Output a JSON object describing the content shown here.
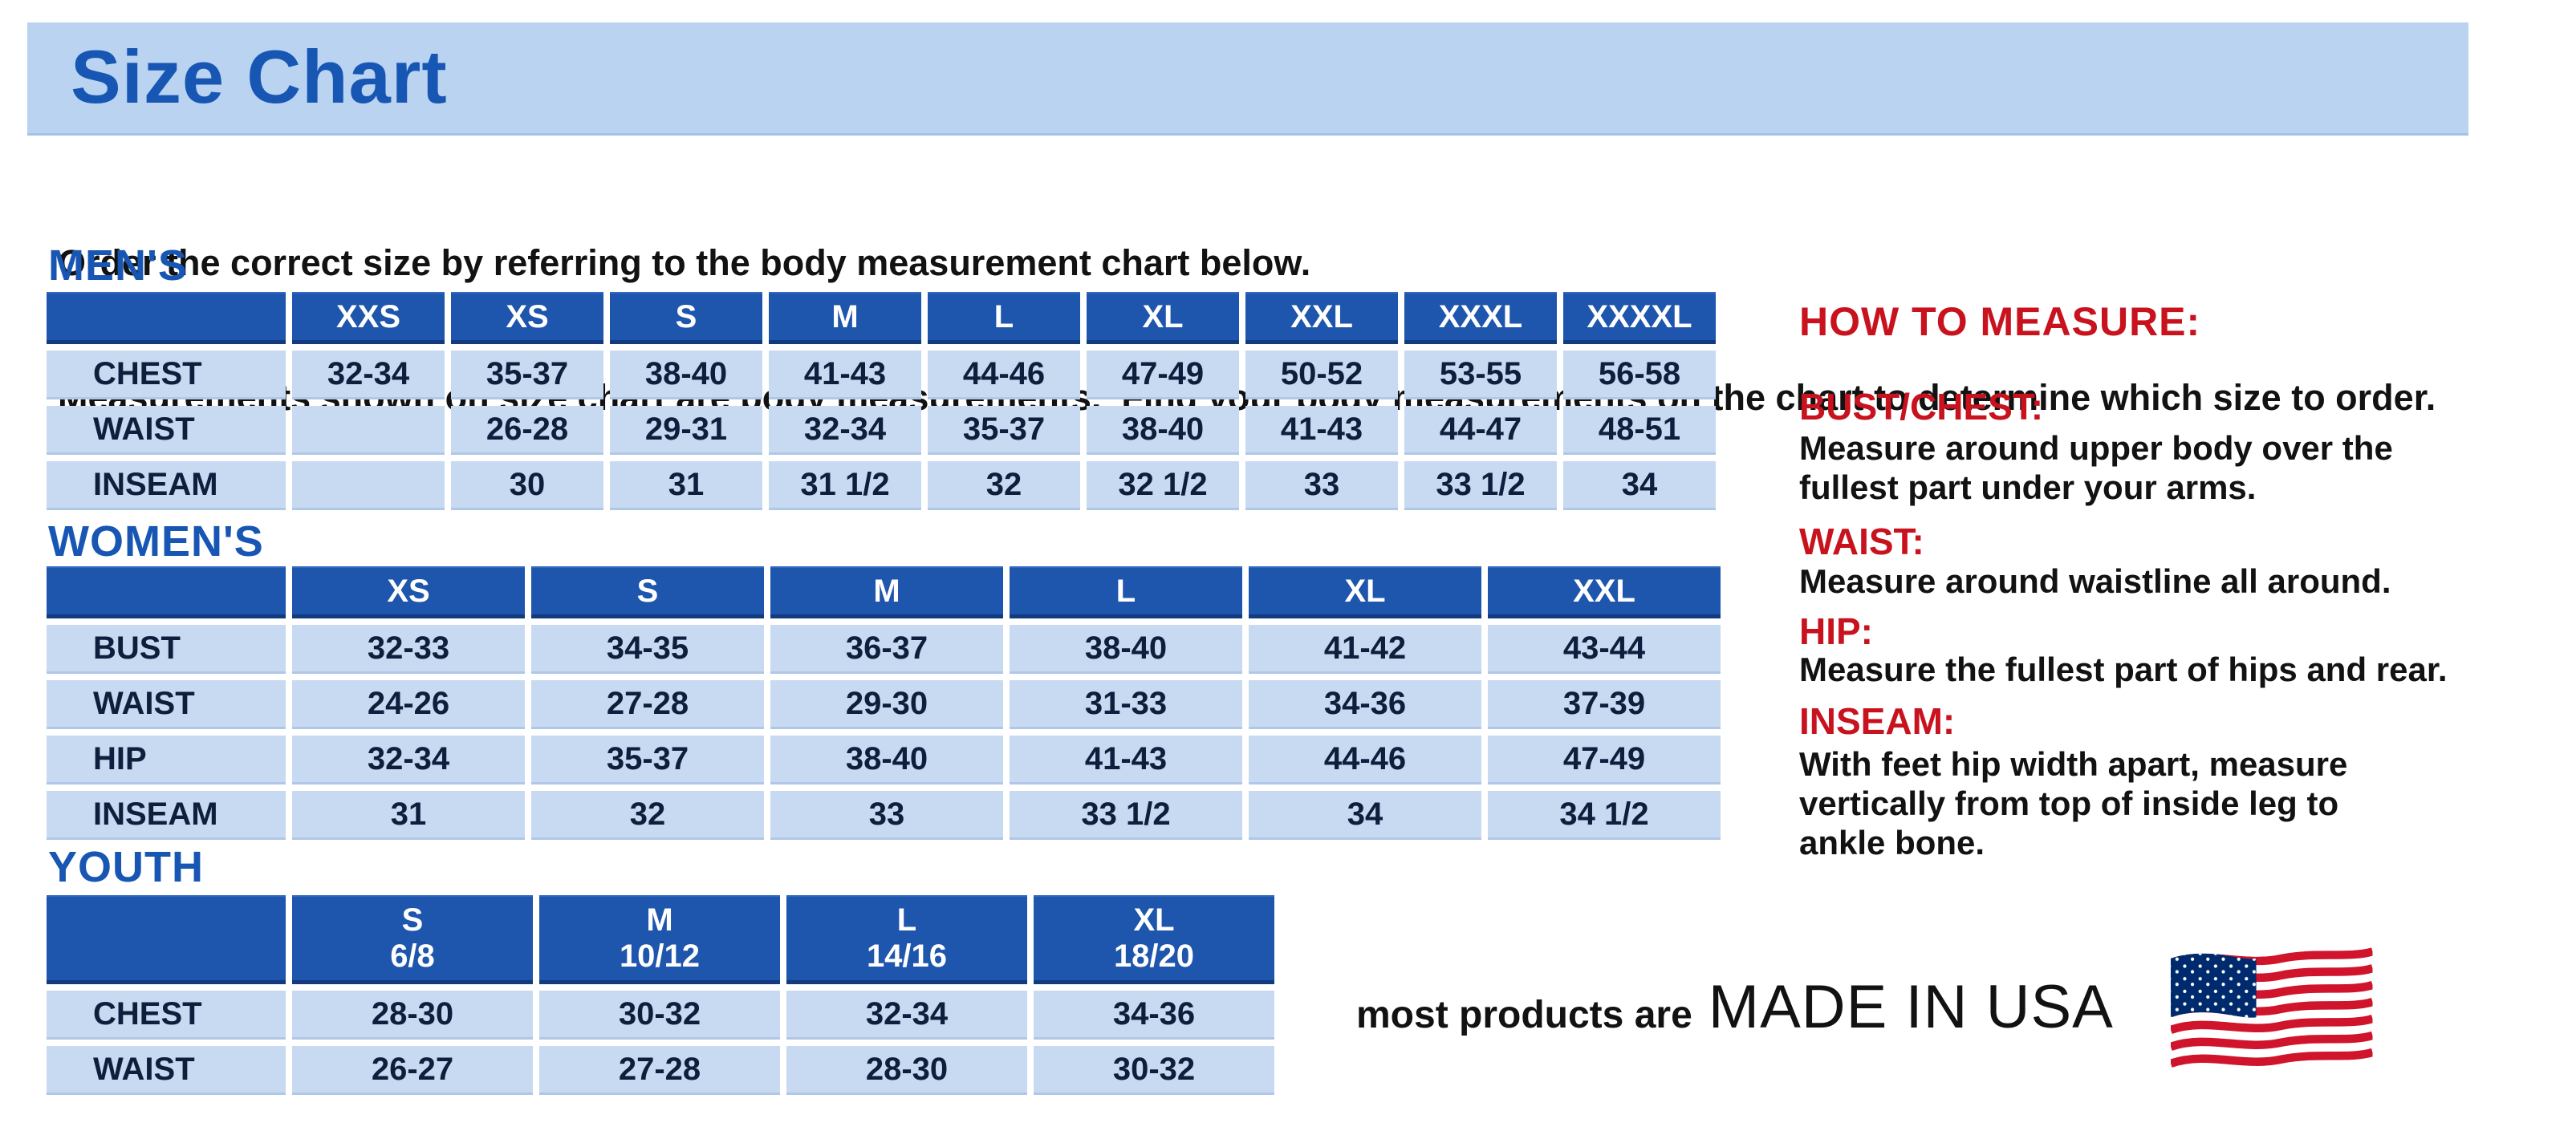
{
  "title": "Size Chart",
  "intro": {
    "line1": "Order the correct size by referring to the body measurement chart below.",
    "line2": "Measurements shown on size chart are body measurements.  Find your body measurements on the chart to determine which size to order."
  },
  "tables": [
    {
      "id": "mens",
      "heading": "MEN'S",
      "columns": [
        "XXS",
        "XS",
        "S",
        "M",
        "L",
        "XL",
        "XXL",
        "XXXL",
        "XXXXL"
      ],
      "rows": [
        {
          "label": "CHEST",
          "values": [
            "32-34",
            "35-37",
            "38-40",
            "41-43",
            "44-46",
            "47-49",
            "50-52",
            "53-55",
            "56-58"
          ]
        },
        {
          "label": "WAIST",
          "values": [
            "",
            "26-28",
            "29-31",
            "32-34",
            "35-37",
            "38-40",
            "41-43",
            "44-47",
            "48-51"
          ]
        },
        {
          "label": "INSEAM",
          "values": [
            "",
            "30",
            "31",
            "31 1/2",
            "32",
            "32 1/2",
            "33",
            "33 1/2",
            "34"
          ]
        }
      ]
    },
    {
      "id": "womens",
      "heading": "WOMEN'S",
      "columns": [
        "XS",
        "S",
        "M",
        "L",
        "XL",
        "XXL"
      ],
      "rows": [
        {
          "label": "BUST",
          "values": [
            "32-33",
            "34-35",
            "36-37",
            "38-40",
            "41-42",
            "43-44"
          ]
        },
        {
          "label": "WAIST",
          "values": [
            "24-26",
            "27-28",
            "29-30",
            "31-33",
            "34-36",
            "37-39"
          ]
        },
        {
          "label": "HIP",
          "values": [
            "32-34",
            "35-37",
            "38-40",
            "41-43",
            "44-46",
            "47-49"
          ]
        },
        {
          "label": "INSEAM",
          "values": [
            "31",
            "32",
            "33",
            "33 1/2",
            "34",
            "34 1/2"
          ]
        }
      ]
    },
    {
      "id": "youth",
      "heading": "YOUTH",
      "columns": [
        "S\n6/8",
        "M\n10/12",
        "L\n14/16",
        "XL\n18/20"
      ],
      "rows": [
        {
          "label": "CHEST",
          "values": [
            "28-30",
            "30-32",
            "32-34",
            "34-36"
          ]
        },
        {
          "label": "WAIST",
          "values": [
            "26-27",
            "27-28",
            "28-30",
            "30-32"
          ]
        }
      ]
    }
  ],
  "how_to_measure": {
    "heading": "HOW TO MEASURE:",
    "items": [
      {
        "label": "BUST/CHEST:",
        "text": "Measure around upper body over the\nfullest part under your arms."
      },
      {
        "label": "WAIST:",
        "text": "Measure around waistline all around."
      },
      {
        "label": "HIP:",
        "text": "Measure the fullest part of hips and rear."
      },
      {
        "label": "INSEAM:",
        "text": "With feet hip width apart, measure\nvertically from top of inside leg to\nankle bone."
      }
    ]
  },
  "footer": {
    "prefix": "most products are",
    "emphasis": "MADE IN USA",
    "flag_icon": "us-flag-icon"
  },
  "colors": {
    "banner_background": "#b9d3f1",
    "heading_blue": "#1856b4",
    "table_header_blue": "#1e55ad",
    "cell_light_blue": "#c8daf2",
    "cell_text_navy": "#0d1f3c",
    "measure_red": "#c8121e",
    "flag_red": "#cf142b",
    "flag_navy": "#002a6e"
  }
}
